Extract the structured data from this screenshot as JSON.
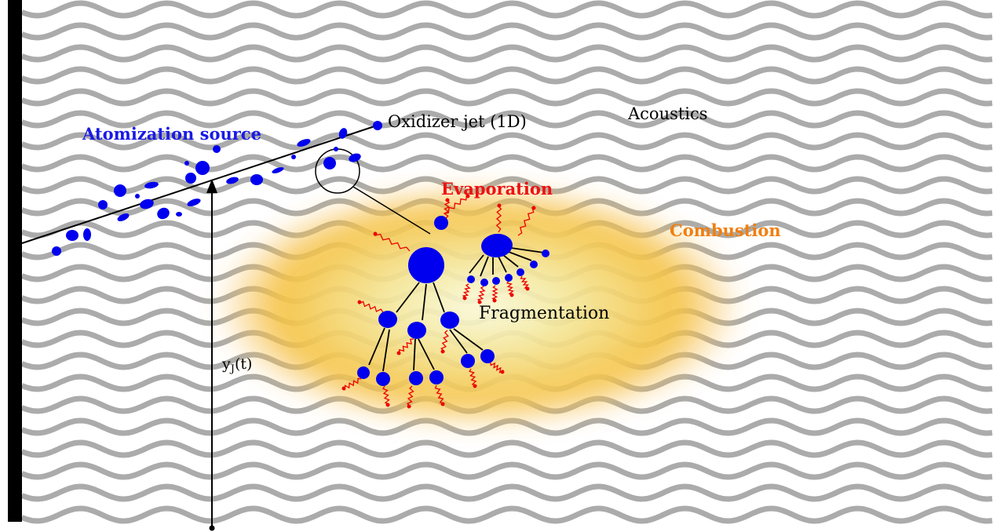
{
  "labels": {
    "atomization": "Atomization source",
    "jet": "Oxidizer jet (1D)",
    "acoustics": "Acoustics",
    "evaporation": "Evaporation",
    "combustion": "Combustion",
    "fragmentation": "Fragmentation",
    "position": {
      "symbol": "y",
      "subscript": "J",
      "argument": "(t)"
    }
  }
}
